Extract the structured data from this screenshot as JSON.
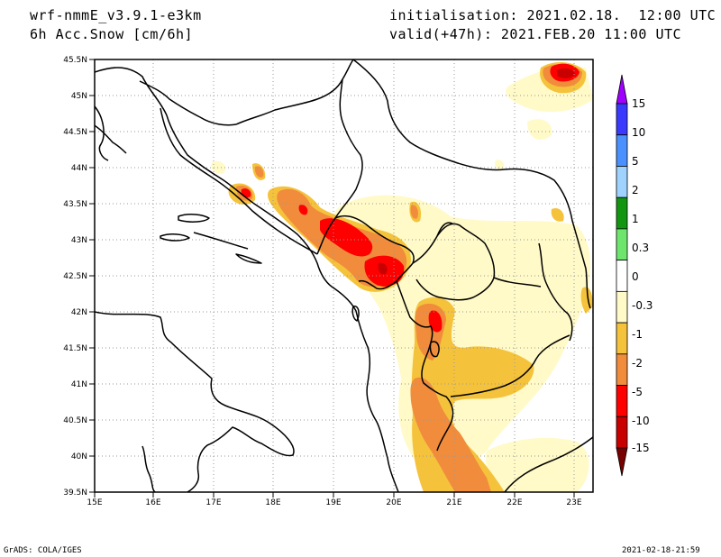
{
  "header": {
    "model": "wrf-nmmE_v3.9.1-e3km",
    "variable": "6h Acc.Snow [cm/6h]",
    "initialisation": "initialisation: 2021.02.18.  12:00 UTC",
    "valid": "valid(+47h): 2021.FEB.20 11:00 UTC"
  },
  "footer": {
    "credit": "GrADS: COLA/IGES",
    "timestamp": "2021-02-18-21:59"
  },
  "map": {
    "lon_ticks": [
      "15E",
      "16E",
      "17E",
      "18E",
      "19E",
      "20E",
      "21E",
      "22E",
      "23E"
    ],
    "lat_ticks": [
      "45.5N",
      "45N",
      "44.5N",
      "44N",
      "43.5N",
      "43N",
      "42.5N",
      "42N",
      "41.5N",
      "41N",
      "40.5N",
      "40N",
      "39.5N"
    ]
  },
  "legend": {
    "labels": [
      "15",
      "10",
      "5",
      "2",
      "1",
      "0.3",
      "0",
      "-0.3",
      "-1",
      "-2",
      "-5",
      "-10",
      "-15"
    ],
    "colors": [
      "#a000ff",
      "#3a3aff",
      "#4a90ff",
      "#a0d2ff",
      "#129612",
      "#6ee66e",
      "#ffffff",
      "#fffac8",
      "#f5c23c",
      "#f08c3c",
      "#ff0000",
      "#c80000",
      "#780000"
    ]
  }
}
